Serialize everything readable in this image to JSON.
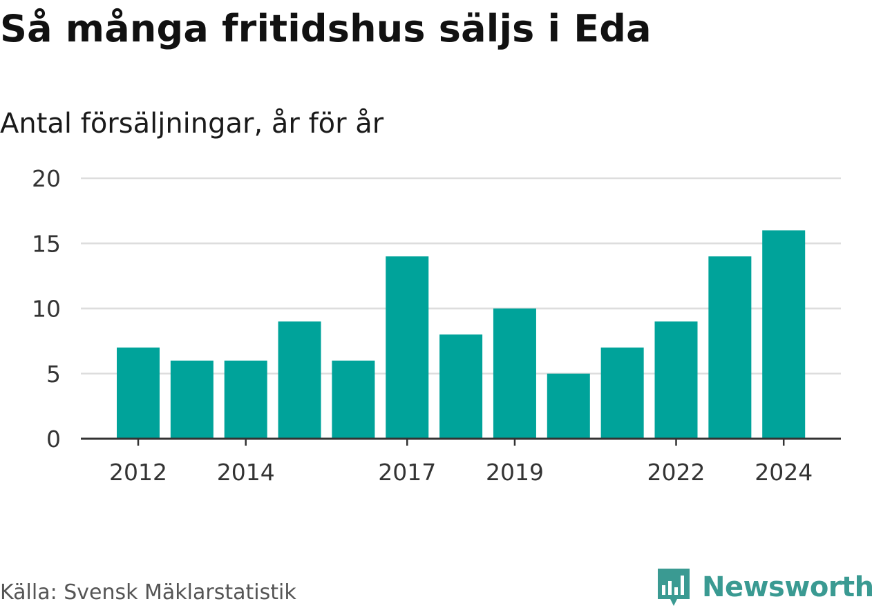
{
  "header": {
    "title": "Så många fritidshus säljs i Eda",
    "subtitle": "Antal försäljningar, år för år"
  },
  "footer": {
    "source": "Källa: Svensk Mäklarstatistik",
    "brand": "Newsworthy",
    "brand_icon": "newsworthy-logo-icon"
  },
  "colors": {
    "bar": "#00a39a",
    "grid": "#dddddd",
    "axis": "#333333",
    "brand": "#3a9a92"
  },
  "chart_data": {
    "type": "bar",
    "title": "Så många fritidshus säljs i Eda",
    "subtitle": "Antal försäljningar, år för år",
    "xlabel": "",
    "ylabel": "",
    "categories": [
      "2012",
      "2013",
      "2014",
      "2015",
      "2016",
      "2017",
      "2018",
      "2019",
      "2020",
      "2021",
      "2022",
      "2023",
      "2024"
    ],
    "values": [
      7,
      6,
      6,
      9,
      6,
      14,
      8,
      10,
      5,
      7,
      9,
      14,
      16
    ],
    "x_tick_labels": [
      "2012",
      "2014",
      "2017",
      "2019",
      "2022",
      "2024"
    ],
    "y_ticks": [
      0,
      5,
      10,
      15,
      20
    ],
    "ylim": [
      0,
      20
    ],
    "grid": true,
    "legend": "none"
  }
}
